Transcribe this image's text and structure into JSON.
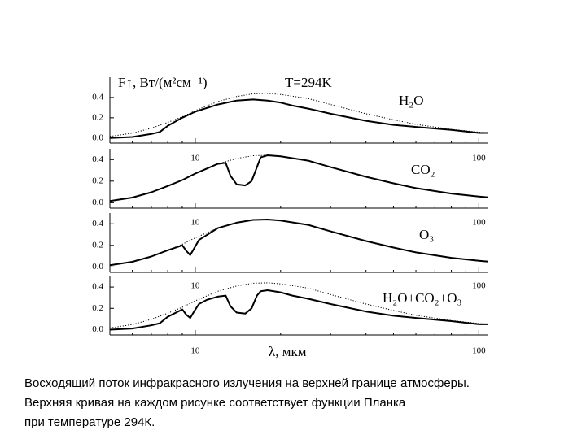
{
  "chart_data": [
    {
      "type": "line",
      "ylabel": "F↑, Вт/(м²см⁻¹)",
      "annotation": "T=294K",
      "panel_label": "H₂O",
      "log_x": true,
      "xlim": [
        5,
        108
      ],
      "ylim": [
        -0.05,
        0.6
      ],
      "xticks": [
        10,
        100
      ],
      "yticks": [
        {
          "value": 0,
          "label": "0.0"
        },
        0.2,
        0.4
      ],
      "series": [
        {
          "linestyle": "dotted",
          "color": "#000000",
          "x": [
            5,
            6,
            7,
            8,
            9,
            10,
            12,
            14,
            16,
            18,
            20,
            25,
            30,
            40,
            50,
            60,
            80,
            100,
            108
          ],
          "values": [
            0.016,
            0.048,
            0.097,
            0.155,
            0.21,
            0.27,
            0.36,
            0.41,
            0.436,
            0.44,
            0.43,
            0.39,
            0.33,
            0.24,
            0.18,
            0.135,
            0.085,
            0.058,
            0.05
          ]
        },
        {
          "linestyle": "solid",
          "color": "#000000",
          "x": [
            5,
            6,
            7,
            7.5,
            8,
            9,
            10,
            12,
            14,
            16,
            18,
            20,
            22,
            25,
            30,
            40,
            50,
            60,
            80,
            100,
            108
          ],
          "values": [
            0.0,
            0.01,
            0.04,
            0.06,
            0.12,
            0.2,
            0.26,
            0.33,
            0.37,
            0.38,
            0.37,
            0.35,
            0.32,
            0.29,
            0.24,
            0.17,
            0.13,
            0.11,
            0.08,
            0.05,
            0.05
          ]
        }
      ]
    },
    {
      "type": "line",
      "panel_label": "CO₂",
      "log_x": true,
      "xlim": [
        5,
        108
      ],
      "ylim": [
        -0.05,
        0.5
      ],
      "xticks": [
        10,
        100
      ],
      "yticks": [
        {
          "value": 0,
          "label": "0.0"
        },
        0.2,
        0.4
      ],
      "series": [
        {
          "linestyle": "dotted",
          "color": "#000000",
          "x": [
            5,
            6,
            7,
            8,
            9,
            10,
            12,
            14,
            16,
            18,
            20,
            25,
            30,
            40,
            50,
            60,
            80,
            100,
            108
          ],
          "values": [
            0.016,
            0.048,
            0.097,
            0.155,
            0.21,
            0.27,
            0.36,
            0.41,
            0.436,
            0.44,
            0.43,
            0.39,
            0.33,
            0.24,
            0.18,
            0.135,
            0.085,
            0.058,
            0.05
          ]
        },
        {
          "linestyle": "solid",
          "color": "#000000",
          "x": [
            5,
            6,
            7,
            8,
            9,
            10,
            12,
            12.8,
            13.3,
            14,
            15,
            15.8,
            16.5,
            17,
            18,
            20,
            25,
            30,
            40,
            50,
            60,
            80,
            100,
            108
          ],
          "values": [
            0.016,
            0.048,
            0.097,
            0.155,
            0.21,
            0.27,
            0.36,
            0.37,
            0.25,
            0.17,
            0.16,
            0.2,
            0.33,
            0.42,
            0.44,
            0.43,
            0.39,
            0.33,
            0.24,
            0.18,
            0.135,
            0.085,
            0.058,
            0.05
          ]
        }
      ]
    },
    {
      "type": "line",
      "panel_label": "O₃",
      "log_x": true,
      "xlim": [
        5,
        108
      ],
      "ylim": [
        -0.05,
        0.5
      ],
      "xticks": [
        10,
        100
      ],
      "yticks": [
        {
          "value": 0,
          "label": "0.0"
        },
        0.2,
        0.4
      ],
      "series": [
        {
          "linestyle": "dotted",
          "color": "#000000",
          "x": [
            5,
            6,
            7,
            8,
            9,
            10,
            12,
            14,
            16,
            18,
            20,
            25,
            30,
            40,
            50,
            60,
            80,
            100,
            108
          ],
          "values": [
            0.016,
            0.048,
            0.097,
            0.155,
            0.21,
            0.27,
            0.36,
            0.41,
            0.436,
            0.44,
            0.43,
            0.39,
            0.33,
            0.24,
            0.18,
            0.135,
            0.085,
            0.058,
            0.05
          ]
        },
        {
          "linestyle": "solid",
          "color": "#000000",
          "x": [
            5,
            6,
            7,
            8,
            9,
            9.3,
            9.6,
            9.9,
            10.3,
            12,
            14,
            16,
            18,
            20,
            25,
            30,
            40,
            50,
            60,
            80,
            100,
            108
          ],
          "values": [
            0.016,
            0.048,
            0.097,
            0.155,
            0.2,
            0.15,
            0.11,
            0.17,
            0.25,
            0.36,
            0.41,
            0.436,
            0.44,
            0.43,
            0.39,
            0.33,
            0.24,
            0.18,
            0.135,
            0.085,
            0.058,
            0.05
          ]
        }
      ]
    },
    {
      "type": "line",
      "panel_label": "H₂O+CO₂+O₃",
      "xlabel": "λ, мкм",
      "log_x": true,
      "xlim": [
        5,
        108
      ],
      "ylim": [
        -0.05,
        0.5
      ],
      "xticks": [
        10,
        100
      ],
      "yticks": [
        {
          "value": 0,
          "label": "0.0"
        },
        0.2,
        0.4
      ],
      "series": [
        {
          "linestyle": "dotted",
          "color": "#000000",
          "x": [
            5,
            6,
            7,
            8,
            9,
            10,
            12,
            14,
            16,
            18,
            20,
            25,
            30,
            40,
            50,
            60,
            80,
            100,
            108
          ],
          "values": [
            0.016,
            0.048,
            0.097,
            0.155,
            0.21,
            0.27,
            0.36,
            0.41,
            0.436,
            0.44,
            0.43,
            0.39,
            0.33,
            0.24,
            0.18,
            0.135,
            0.085,
            0.058,
            0.05
          ]
        },
        {
          "linestyle": "solid",
          "color": "#000000",
          "x": [
            5,
            6,
            7,
            7.5,
            8,
            9,
            9.3,
            9.6,
            9.9,
            10.3,
            11,
            12,
            12.8,
            13.3,
            14,
            15,
            15.8,
            16.5,
            17,
            18,
            20,
            22,
            25,
            30,
            40,
            50,
            60,
            80,
            100,
            108
          ],
          "values": [
            0.0,
            0.01,
            0.04,
            0.06,
            0.12,
            0.19,
            0.14,
            0.11,
            0.17,
            0.24,
            0.28,
            0.31,
            0.32,
            0.22,
            0.16,
            0.15,
            0.2,
            0.32,
            0.36,
            0.37,
            0.35,
            0.32,
            0.29,
            0.24,
            0.17,
            0.13,
            0.11,
            0.08,
            0.05,
            0.05
          ]
        }
      ]
    }
  ],
  "caption": [
    "Восходящий поток инфракрасного излучения на верхней границе атмосферы.",
    "Верхняя кривая на каждом рисунке соответствует функции Планка",
    "при температуре 294К."
  ]
}
